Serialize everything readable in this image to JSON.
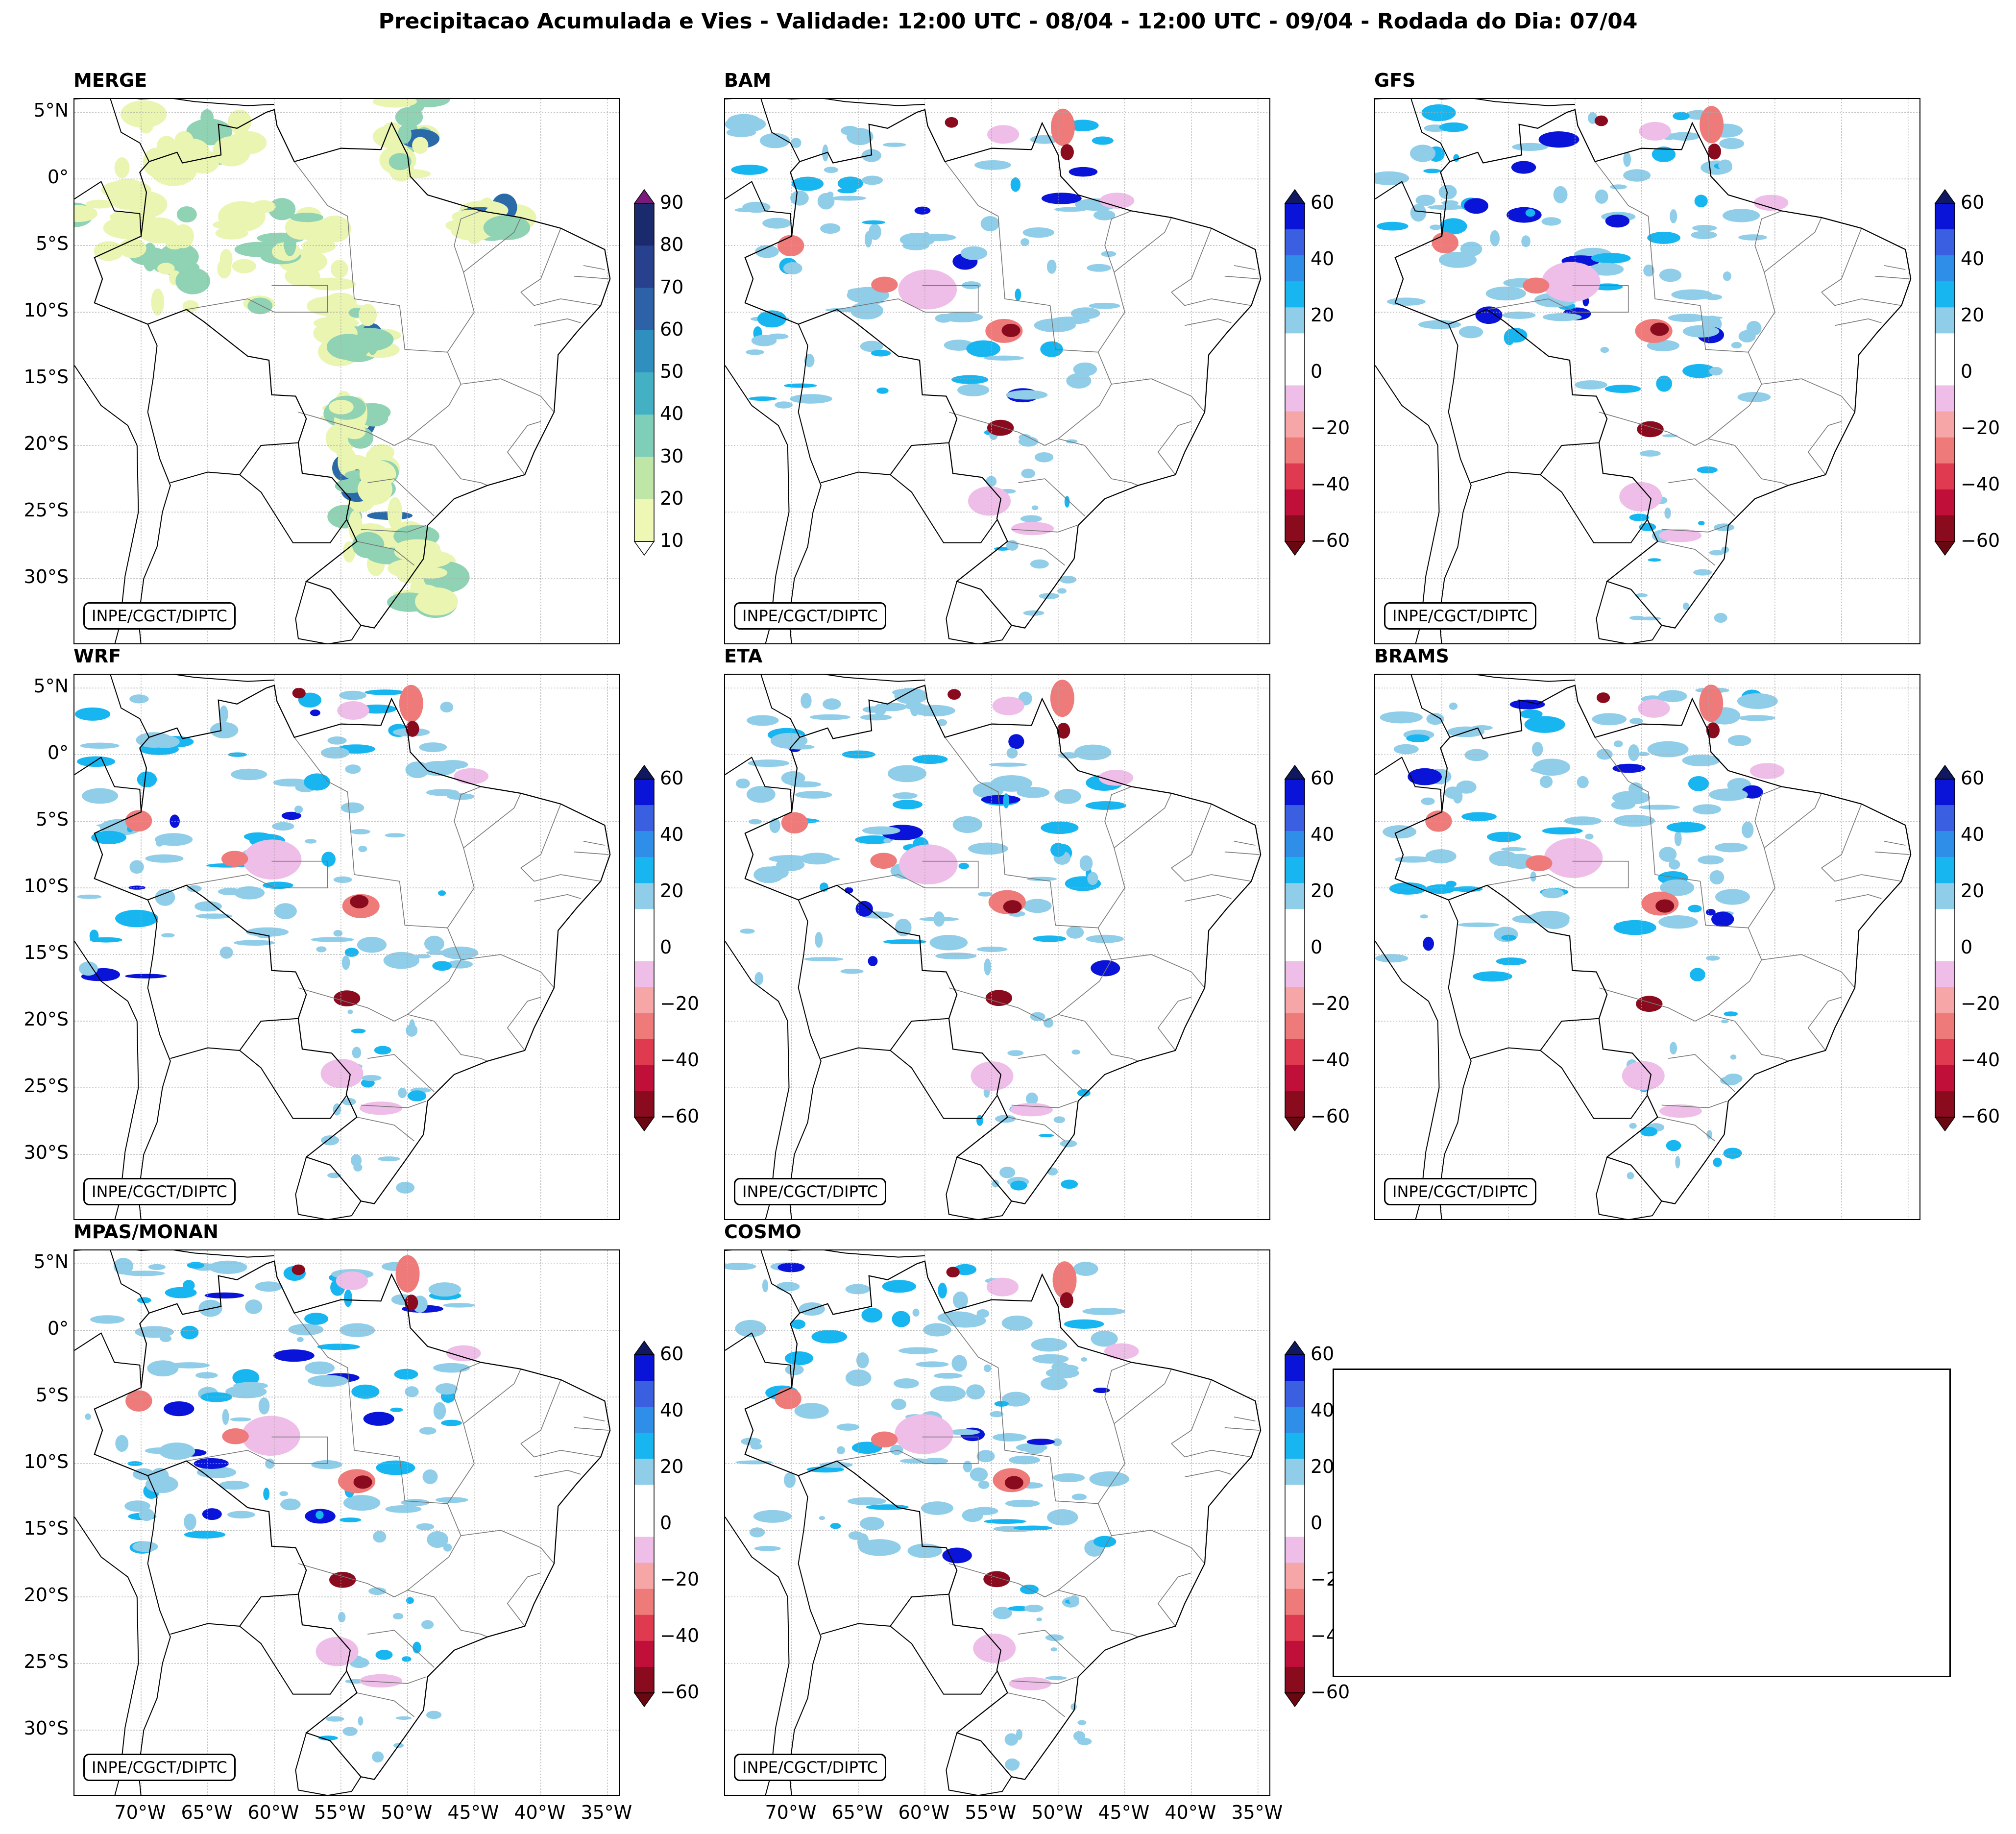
{
  "title": "Precipitacao Acumulada e Vies - Validade: 12:00 UTC - 08/04 - 12:00 UTC - 09/04 - Rodada do Dia: 07/04",
  "credit": "INPE/CGCT/DIPTC",
  "lat_labels": [
    "5°N",
    "0°",
    "5°S",
    "10°S",
    "15°S",
    "20°S",
    "25°S",
    "30°S"
  ],
  "lon_labels": [
    "70°W",
    "65°W",
    "60°W",
    "55°W",
    "50°W",
    "45°W",
    "40°W",
    "35°W"
  ],
  "panels": [
    {
      "name": "MERGE",
      "kind": "precip"
    },
    {
      "name": "BAM",
      "kind": "bias"
    },
    {
      "name": "GFS",
      "kind": "bias"
    },
    {
      "name": "WRF",
      "kind": "bias"
    },
    {
      "name": "ETA",
      "kind": "bias"
    },
    {
      "name": "BRAMS",
      "kind": "bias"
    },
    {
      "name": "MPAS/MONAN",
      "kind": "bias"
    },
    {
      "name": "COSMO",
      "kind": "bias"
    }
  ],
  "colorbars": {
    "precip": {
      "labels": [
        "90",
        "80",
        "70",
        "60",
        "50",
        "40",
        "30",
        "20",
        "10"
      ],
      "colors": [
        "#1a2a6c",
        "#27418f",
        "#2d61a8",
        "#2f8fbf",
        "#43b0c4",
        "#7fcfb8",
        "#bfe6a6",
        "#eef7b4"
      ],
      "top_tip": "#7a1a7a",
      "bottom_tip": "#ffffff"
    },
    "bias": {
      "labels": [
        "60",
        "40",
        "20",
        "0",
        "−20",
        "−40",
        "−60"
      ],
      "colors": [
        "#0a14d8",
        "#3a5fe0",
        "#2f8fe8",
        "#18b6f0",
        "#8fcde8",
        "#ffffff",
        "#ffffff",
        "#eebee8",
        "#f6a6a6",
        "#ee7a7a",
        "#e03a50",
        "#c0103a",
        "#8a0a1e"
      ],
      "top_tip": "#101860",
      "bottom_tip": "#6a0812"
    }
  },
  "map_colors": {
    "country_border": "#000000",
    "state_border": "#777777",
    "grid": "#aaaaaa",
    "merge_light": "#e9f5b0",
    "merge_mid": "#8fd2b4",
    "merge_dark": "#2b6aa8",
    "bias_blue_light": "#8fcde8",
    "bias_blue_mid": "#18b6f0",
    "bias_blue_dark": "#0a14d8",
    "bias_red_light": "#eebee8",
    "bias_red_mid": "#ee7a7a",
    "bias_red_dark": "#8a0a1e"
  }
}
